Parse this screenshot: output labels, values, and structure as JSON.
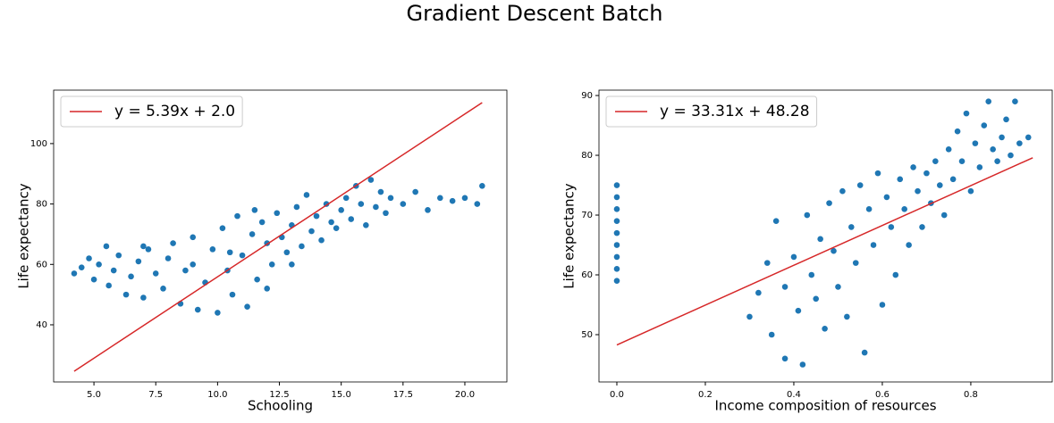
{
  "title": "Gradient Descent Batch",
  "chart_data": [
    {
      "type": "scatter",
      "xlabel": "Schooling",
      "ylabel": "Life expectancy",
      "xlim": [
        3.37,
        21.7
      ],
      "ylim": [
        21.08,
        117.7
      ],
      "xticks": [
        {
          "value": 5,
          "label": "5.0"
        },
        7.5,
        {
          "value": 10,
          "label": "10.0"
        },
        12.5,
        {
          "value": 15,
          "label": "15.0"
        },
        17.5,
        {
          "value": 20,
          "label": "20.0"
        }
      ],
      "yticks": [
        40,
        60,
        80,
        100
      ],
      "grid": false,
      "legend": "upper left",
      "series": [
        {
          "kind": "scatter",
          "color": "#1f77b4",
          "x": [
            4.2,
            4.5,
            4.8,
            5.0,
            5.2,
            5.5,
            5.6,
            5.8,
            6.0,
            6.3,
            6.5,
            6.8,
            7.0,
            7.2,
            7.5,
            7.8,
            8.0,
            8.2,
            8.5,
            8.7,
            9.0,
            9.2,
            9.5,
            9.8,
            10.0,
            10.2,
            10.4,
            10.6,
            10.8,
            11.0,
            11.2,
            11.4,
            11.6,
            11.8,
            12.0,
            12.2,
            12.4,
            12.6,
            12.8,
            13.0,
            13.2,
            13.4,
            13.6,
            13.8,
            14.0,
            14.2,
            14.4,
            14.6,
            14.8,
            15.0,
            15.2,
            15.4,
            15.6,
            15.8,
            16.0,
            16.2,
            16.4,
            16.6,
            16.8,
            17.0,
            17.5,
            18.0,
            18.5,
            19.0,
            19.5,
            20.0,
            20.5,
            20.7,
            11.5,
            10.5,
            9.0,
            12.0,
            7.0,
            13.0
          ],
          "values": [
            57,
            59,
            62,
            55,
            60,
            66,
            53,
            58,
            63,
            50,
            56,
            61,
            49,
            65,
            57,
            52,
            62,
            67,
            47,
            58,
            69,
            45,
            54,
            65,
            44,
            72,
            58,
            50,
            76,
            63,
            46,
            70,
            55,
            74,
            67,
            60,
            77,
            69,
            64,
            73,
            79,
            66,
            83,
            71,
            76,
            68,
            80,
            74,
            72,
            78,
            82,
            75,
            86,
            80,
            73,
            88,
            79,
            84,
            77,
            82,
            80,
            84,
            78,
            82,
            81,
            82,
            80,
            86,
            78,
            64,
            60,
            52,
            66,
            60
          ]
        },
        {
          "kind": "line",
          "name": "y = 5.39x + 2.0",
          "color": "#d62728",
          "x": [
            4.2,
            20.7
          ],
          "values": [
            24.64,
            113.57
          ]
        }
      ]
    },
    {
      "type": "scatter",
      "xlabel": "Income composition of resources",
      "ylabel": "Life expectancy",
      "xlim": [
        -0.0404,
        0.984
      ],
      "ylim": [
        42.09,
        90.9
      ],
      "xticks": [
        {
          "value": 0,
          "label": "0.0"
        },
        0.2,
        0.4,
        0.6,
        0.8
      ],
      "yticks": [
        50,
        60,
        70,
        80,
        90
      ],
      "grid": false,
      "legend": "upper left",
      "series": [
        {
          "kind": "scatter",
          "color": "#1f77b4",
          "x": [
            0,
            0,
            0,
            0,
            0,
            0,
            0,
            0,
            0,
            0.3,
            0.32,
            0.34,
            0.35,
            0.36,
            0.38,
            0.38,
            0.4,
            0.41,
            0.42,
            0.43,
            0.44,
            0.45,
            0.46,
            0.47,
            0.48,
            0.49,
            0.5,
            0.51,
            0.52,
            0.53,
            0.54,
            0.55,
            0.56,
            0.57,
            0.58,
            0.59,
            0.6,
            0.61,
            0.62,
            0.63,
            0.64,
            0.65,
            0.66,
            0.67,
            0.68,
            0.69,
            0.7,
            0.71,
            0.72,
            0.73,
            0.74,
            0.75,
            0.76,
            0.77,
            0.78,
            0.79,
            0.8,
            0.81,
            0.82,
            0.83,
            0.84,
            0.85,
            0.86,
            0.87,
            0.88,
            0.89,
            0.9,
            0.91,
            0.93
          ],
          "values": [
            59,
            61,
            63,
            65,
            67,
            69,
            71,
            73,
            75,
            53,
            57,
            62,
            50,
            69,
            46,
            58,
            63,
            54,
            45,
            70,
            60,
            56,
            66,
            51,
            72,
            64,
            58,
            74,
            53,
            68,
            62,
            75,
            47,
            71,
            65,
            77,
            55,
            73,
            68,
            60,
            76,
            71,
            65,
            78,
            74,
            68,
            77,
            72,
            79,
            75,
            70,
            81,
            76,
            84,
            79,
            87,
            74,
            82,
            78,
            85,
            89,
            81,
            79,
            83,
            86,
            80,
            89,
            82,
            83
          ]
        },
        {
          "kind": "line",
          "name": "y = 33.31x + 48.28",
          "color": "#d62728",
          "x": [
            0,
            0.94
          ],
          "values": [
            48.28,
            79.59
          ]
        }
      ]
    }
  ]
}
